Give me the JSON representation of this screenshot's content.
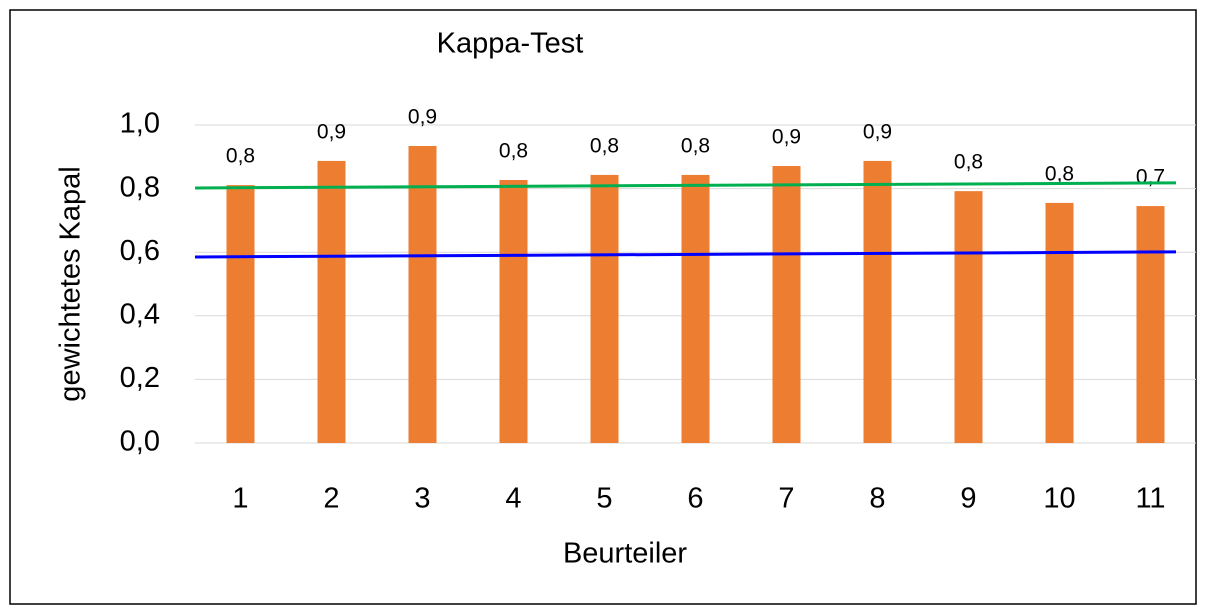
{
  "chart_data": {
    "type": "bar",
    "title": "Kappa-Test",
    "xlabel": "Beurteiler",
    "ylabel": "gewichtetes Kapal",
    "categories": [
      "1",
      "2",
      "3",
      "4",
      "5",
      "6",
      "7",
      "8",
      "9",
      "10",
      "11"
    ],
    "values": [
      0.811,
      0.887,
      0.934,
      0.827,
      0.843,
      0.843,
      0.871,
      0.887,
      0.792,
      0.755,
      0.745
    ],
    "value_labels": [
      "0,8",
      "0,9",
      "0,9",
      "0,8",
      "0,8",
      "0,8",
      "0,9",
      "0,9",
      "0,8",
      "0,8",
      "0,7"
    ],
    "color": "#ed7d31",
    "ylim": [
      0,
      1.0
    ],
    "yticks": [
      {
        "value": 0,
        "label": "0,0"
      },
      {
        "value": 0.2,
        "label": "0,2"
      },
      {
        "value": 0.4,
        "label": "0,4"
      },
      {
        "value": 0.6,
        "label": "0,6"
      },
      {
        "value": 0.8,
        "label": "0,8"
      },
      {
        "value": 1.0,
        "label": "1,0"
      }
    ],
    "grid": true,
    "lines": [
      {
        "color": "#00b050",
        "values": [
          0.802,
          0.818
        ]
      },
      {
        "color": "#0000ff",
        "values": [
          0.585,
          0.601
        ]
      }
    ]
  }
}
